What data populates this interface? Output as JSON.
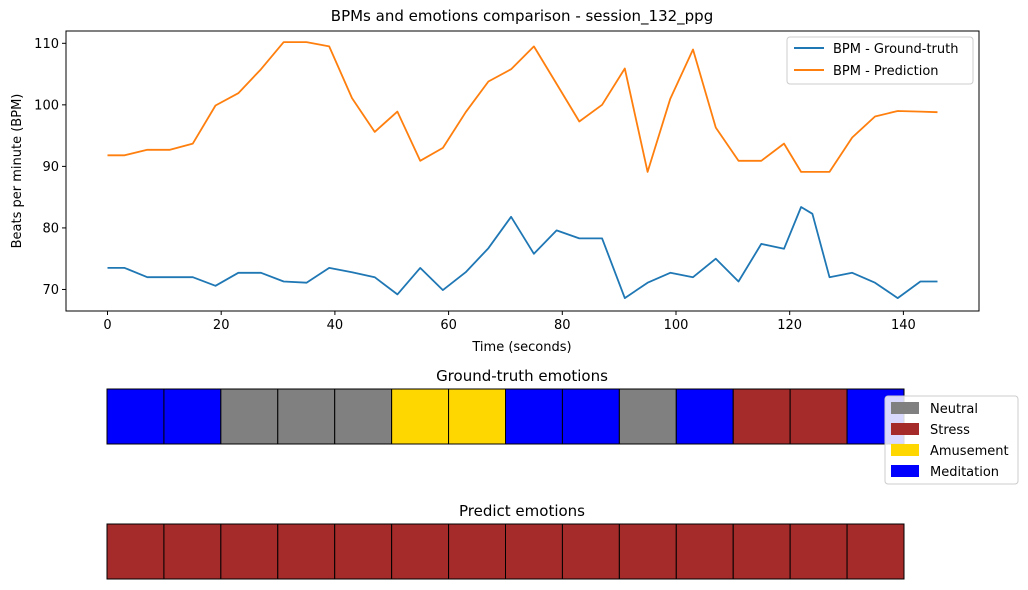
{
  "chart_data": [
    {
      "type": "line",
      "title": "BPMs and emotions comparison - session_132_ppg",
      "xlabel": "Time (seconds)",
      "ylabel": "Beats per minute (BPM)",
      "xlim": [
        -7.3,
        153.3
      ],
      "ylim": [
        66.5,
        112.0
      ],
      "xticks": [
        0,
        20,
        40,
        60,
        80,
        100,
        120,
        140
      ],
      "yticks": [
        70,
        80,
        90,
        100,
        110
      ],
      "legend_position": "top-right",
      "series": [
        {
          "name": "BPM - Ground-truth",
          "color": "#1f77b4",
          "x": [
            0,
            3,
            7,
            11,
            15,
            19,
            23,
            27,
            31,
            35,
            39,
            43,
            47,
            51,
            55,
            59,
            63,
            67,
            71,
            75,
            79,
            83,
            87,
            91,
            95,
            99,
            103,
            107,
            111,
            115,
            119,
            122,
            124,
            127,
            131,
            135,
            139,
            143,
            146
          ],
          "y": [
            73.5,
            73.5,
            72,
            72,
            72,
            70.6,
            72.7,
            72.7,
            71.3,
            71.1,
            73.5,
            72.8,
            72,
            69.2,
            73.5,
            69.9,
            72.8,
            76.7,
            81.8,
            75.8,
            79.6,
            78.3,
            78.3,
            68.6,
            71.1,
            72.7,
            72,
            75,
            71.3,
            77.4,
            76.6,
            83.4,
            82.3,
            72,
            72.7,
            71.1,
            68.6,
            71.3,
            71.3
          ]
        },
        {
          "name": "BPM - Prediction",
          "color": "#ff7f0e",
          "x": [
            0,
            3,
            7,
            11,
            15,
            19,
            23,
            27,
            31,
            35,
            39,
            43,
            47,
            51,
            55,
            59,
            63,
            67,
            71,
            75,
            79,
            83,
            87,
            91,
            95,
            99,
            103,
            107,
            111,
            115,
            119,
            122,
            124,
            127,
            131,
            135,
            139,
            143,
            146
          ],
          "y": [
            91.8,
            91.8,
            92.7,
            92.7,
            93.7,
            99.9,
            101.9,
            105.8,
            110.2,
            110.2,
            109.5,
            101.1,
            95.6,
            98.9,
            90.9,
            93,
            98.8,
            103.8,
            105.8,
            109.5,
            103.4,
            97.3,
            100,
            105.9,
            89.1,
            101,
            109,
            96.3,
            90.9,
            90.9,
            93.7,
            89.1,
            89.1,
            89.1,
            94.7,
            98.1,
            99,
            98.9,
            98.8
          ]
        }
      ]
    },
    {
      "type": "heatmap",
      "title": "Ground-truth emotions",
      "cells": [
        "Meditation",
        "Meditation",
        "Neutral",
        "Neutral",
        "Neutral",
        "Amusement",
        "Amusement",
        "Meditation",
        "Meditation",
        "Neutral",
        "Meditation",
        "Stress",
        "Stress",
        "Meditation"
      ],
      "legend_position": "right",
      "legend": [
        {
          "label": "Neutral",
          "color": "#808080"
        },
        {
          "label": "Stress",
          "color": "#a52a2a"
        },
        {
          "label": "Amusement",
          "color": "#ffd700"
        },
        {
          "label": "Meditation",
          "color": "#0000ff"
        }
      ]
    },
    {
      "type": "heatmap",
      "title": "Predict emotions",
      "cells": [
        "Stress",
        "Stress",
        "Stress",
        "Stress",
        "Stress",
        "Stress",
        "Stress",
        "Stress",
        "Stress",
        "Stress",
        "Stress",
        "Stress",
        "Stress",
        "Stress"
      ]
    }
  ]
}
